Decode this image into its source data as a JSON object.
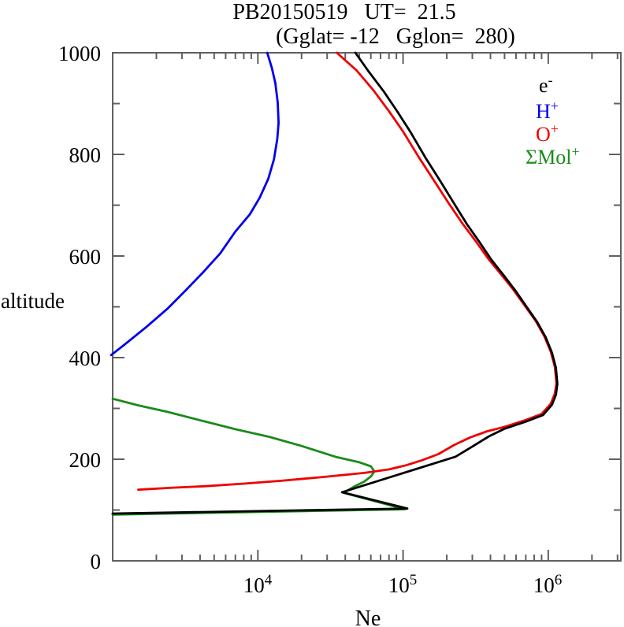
{
  "title": {
    "line1": "PB20150519   UT=  21.5",
    "line2": "(Gglat= -12   Gglon=  280)"
  },
  "axes": {
    "y_label": "altitude",
    "x_label": "Ne",
    "y_ticks": [
      "1000",
      "800",
      "600",
      "400",
      "200",
      "0"
    ],
    "x_ticks": [
      {
        "base": "10",
        "exp": "4"
      },
      {
        "base": "10",
        "exp": "5"
      },
      {
        "base": "10",
        "exp": "6"
      }
    ]
  },
  "legend": [
    {
      "name": "electron",
      "base": "e",
      "sup": "-",
      "color": "#000000"
    },
    {
      "name": "h-plus",
      "base": "H",
      "sup": "+",
      "color": "#0000ee"
    },
    {
      "name": "o-plus",
      "base": "O",
      "sup": "+",
      "color": "#ee0000"
    },
    {
      "name": "mol-plus",
      "base": "ΣMol",
      "sup": "+",
      "color": "#1a8b1a"
    }
  ],
  "frame_color": "#606060",
  "chart_data": {
    "type": "line",
    "title": "PB20150519 UT= 21.5 (Gglat= -12 Gglon= 280)",
    "xlabel": "Ne",
    "ylabel": "altitude",
    "x_scale": "log",
    "x_range": [
      1000,
      3162278
    ],
    "y_range": [
      0,
      1000
    ],
    "x_major_ticks": [
      10000,
      100000,
      1000000
    ],
    "y_major_step": 200,
    "y_minor_step": 100,
    "grid": false,
    "legend_position": "upper right inside",
    "series": [
      {
        "name": "mol-plus",
        "label": "ΣMol+",
        "color": "#1a8b1a",
        "points": [
          [
            1000,
            91
          ],
          [
            103000,
            101.5
          ],
          [
            39000,
            134
          ],
          [
            46000,
            146
          ],
          [
            54000,
            156
          ],
          [
            60000,
            166
          ],
          [
            63500,
            176
          ],
          [
            60000,
            186
          ],
          [
            50000,
            194
          ],
          [
            35000,
            204
          ],
          [
            20000,
            226
          ],
          [
            12000,
            244
          ],
          [
            7000,
            259
          ],
          [
            4100,
            276
          ],
          [
            2400,
            293
          ],
          [
            1500,
            306
          ],
          [
            1000,
            319
          ]
        ]
      },
      {
        "name": "h-plus",
        "label": "H+",
        "color": "#0000ee",
        "points": [
          [
            975,
            405
          ],
          [
            1200,
            425
          ],
          [
            1700,
            460
          ],
          [
            2400,
            497
          ],
          [
            3200,
            533
          ],
          [
            4200,
            568
          ],
          [
            5500,
            605
          ],
          [
            7000,
            648
          ],
          [
            8800,
            682
          ],
          [
            10300,
            715
          ],
          [
            11800,
            752
          ],
          [
            12900,
            790
          ],
          [
            13600,
            830
          ],
          [
            13900,
            862
          ],
          [
            13700,
            902
          ],
          [
            13200,
            940
          ],
          [
            12500,
            970
          ],
          [
            11600,
            1000
          ]
        ]
      },
      {
        "name": "o-plus",
        "label": "O+",
        "color": "#ee0000",
        "points": [
          [
            1500,
            140
          ],
          [
            2600,
            144
          ],
          [
            4400,
            147
          ],
          [
            8000,
            152
          ],
          [
            15000,
            158
          ],
          [
            28000,
            165
          ],
          [
            54000,
            173
          ],
          [
            80000,
            180
          ],
          [
            105000,
            188
          ],
          [
            135000,
            198
          ],
          [
            175000,
            210
          ],
          [
            225000,
            228
          ],
          [
            290000,
            243
          ],
          [
            380000,
            255
          ],
          [
            490000,
            263
          ],
          [
            680000,
            276
          ],
          [
            900000,
            289
          ],
          [
            1040000,
            309
          ],
          [
            1110000,
            329
          ],
          [
            1140000,
            350
          ],
          [
            1110000,
            382
          ],
          [
            1040000,
            412
          ],
          [
            940000,
            442
          ],
          [
            820000,
            472
          ],
          [
            690000,
            502
          ],
          [
            570000,
            535
          ],
          [
            470000,
            565
          ],
          [
            385000,
            595
          ],
          [
            315000,
            630
          ],
          [
            255000,
            665
          ],
          [
            205000,
            705
          ],
          [
            162000,
            750
          ],
          [
            128000,
            795
          ],
          [
            100000,
            845
          ],
          [
            80000,
            885
          ],
          [
            63000,
            925
          ],
          [
            48000,
            965
          ],
          [
            35000,
            1000
          ]
        ]
      },
      {
        "name": "electron",
        "label": "e-",
        "color": "#000000",
        "points": [
          [
            1000,
            93
          ],
          [
            107000,
            103
          ],
          [
            38000,
            135
          ],
          [
            230000,
            205
          ],
          [
            300000,
            225
          ],
          [
            390000,
            245
          ],
          [
            500000,
            260
          ],
          [
            700000,
            274
          ],
          [
            920000,
            287
          ],
          [
            1060000,
            307
          ],
          [
            1130000,
            327
          ],
          [
            1155000,
            348
          ],
          [
            1130000,
            380
          ],
          [
            1060000,
            410
          ],
          [
            960000,
            440
          ],
          [
            840000,
            470
          ],
          [
            710000,
            500
          ],
          [
            590000,
            533
          ],
          [
            490000,
            563
          ],
          [
            405000,
            593
          ],
          [
            335000,
            628
          ],
          [
            275000,
            663
          ],
          [
            225000,
            703
          ],
          [
            180000,
            748
          ],
          [
            143000,
            793
          ],
          [
            113000,
            843
          ],
          [
            92000,
            883
          ],
          [
            74000,
            923
          ],
          [
            58000,
            963
          ],
          [
            47000,
            1000
          ]
        ]
      }
    ]
  }
}
